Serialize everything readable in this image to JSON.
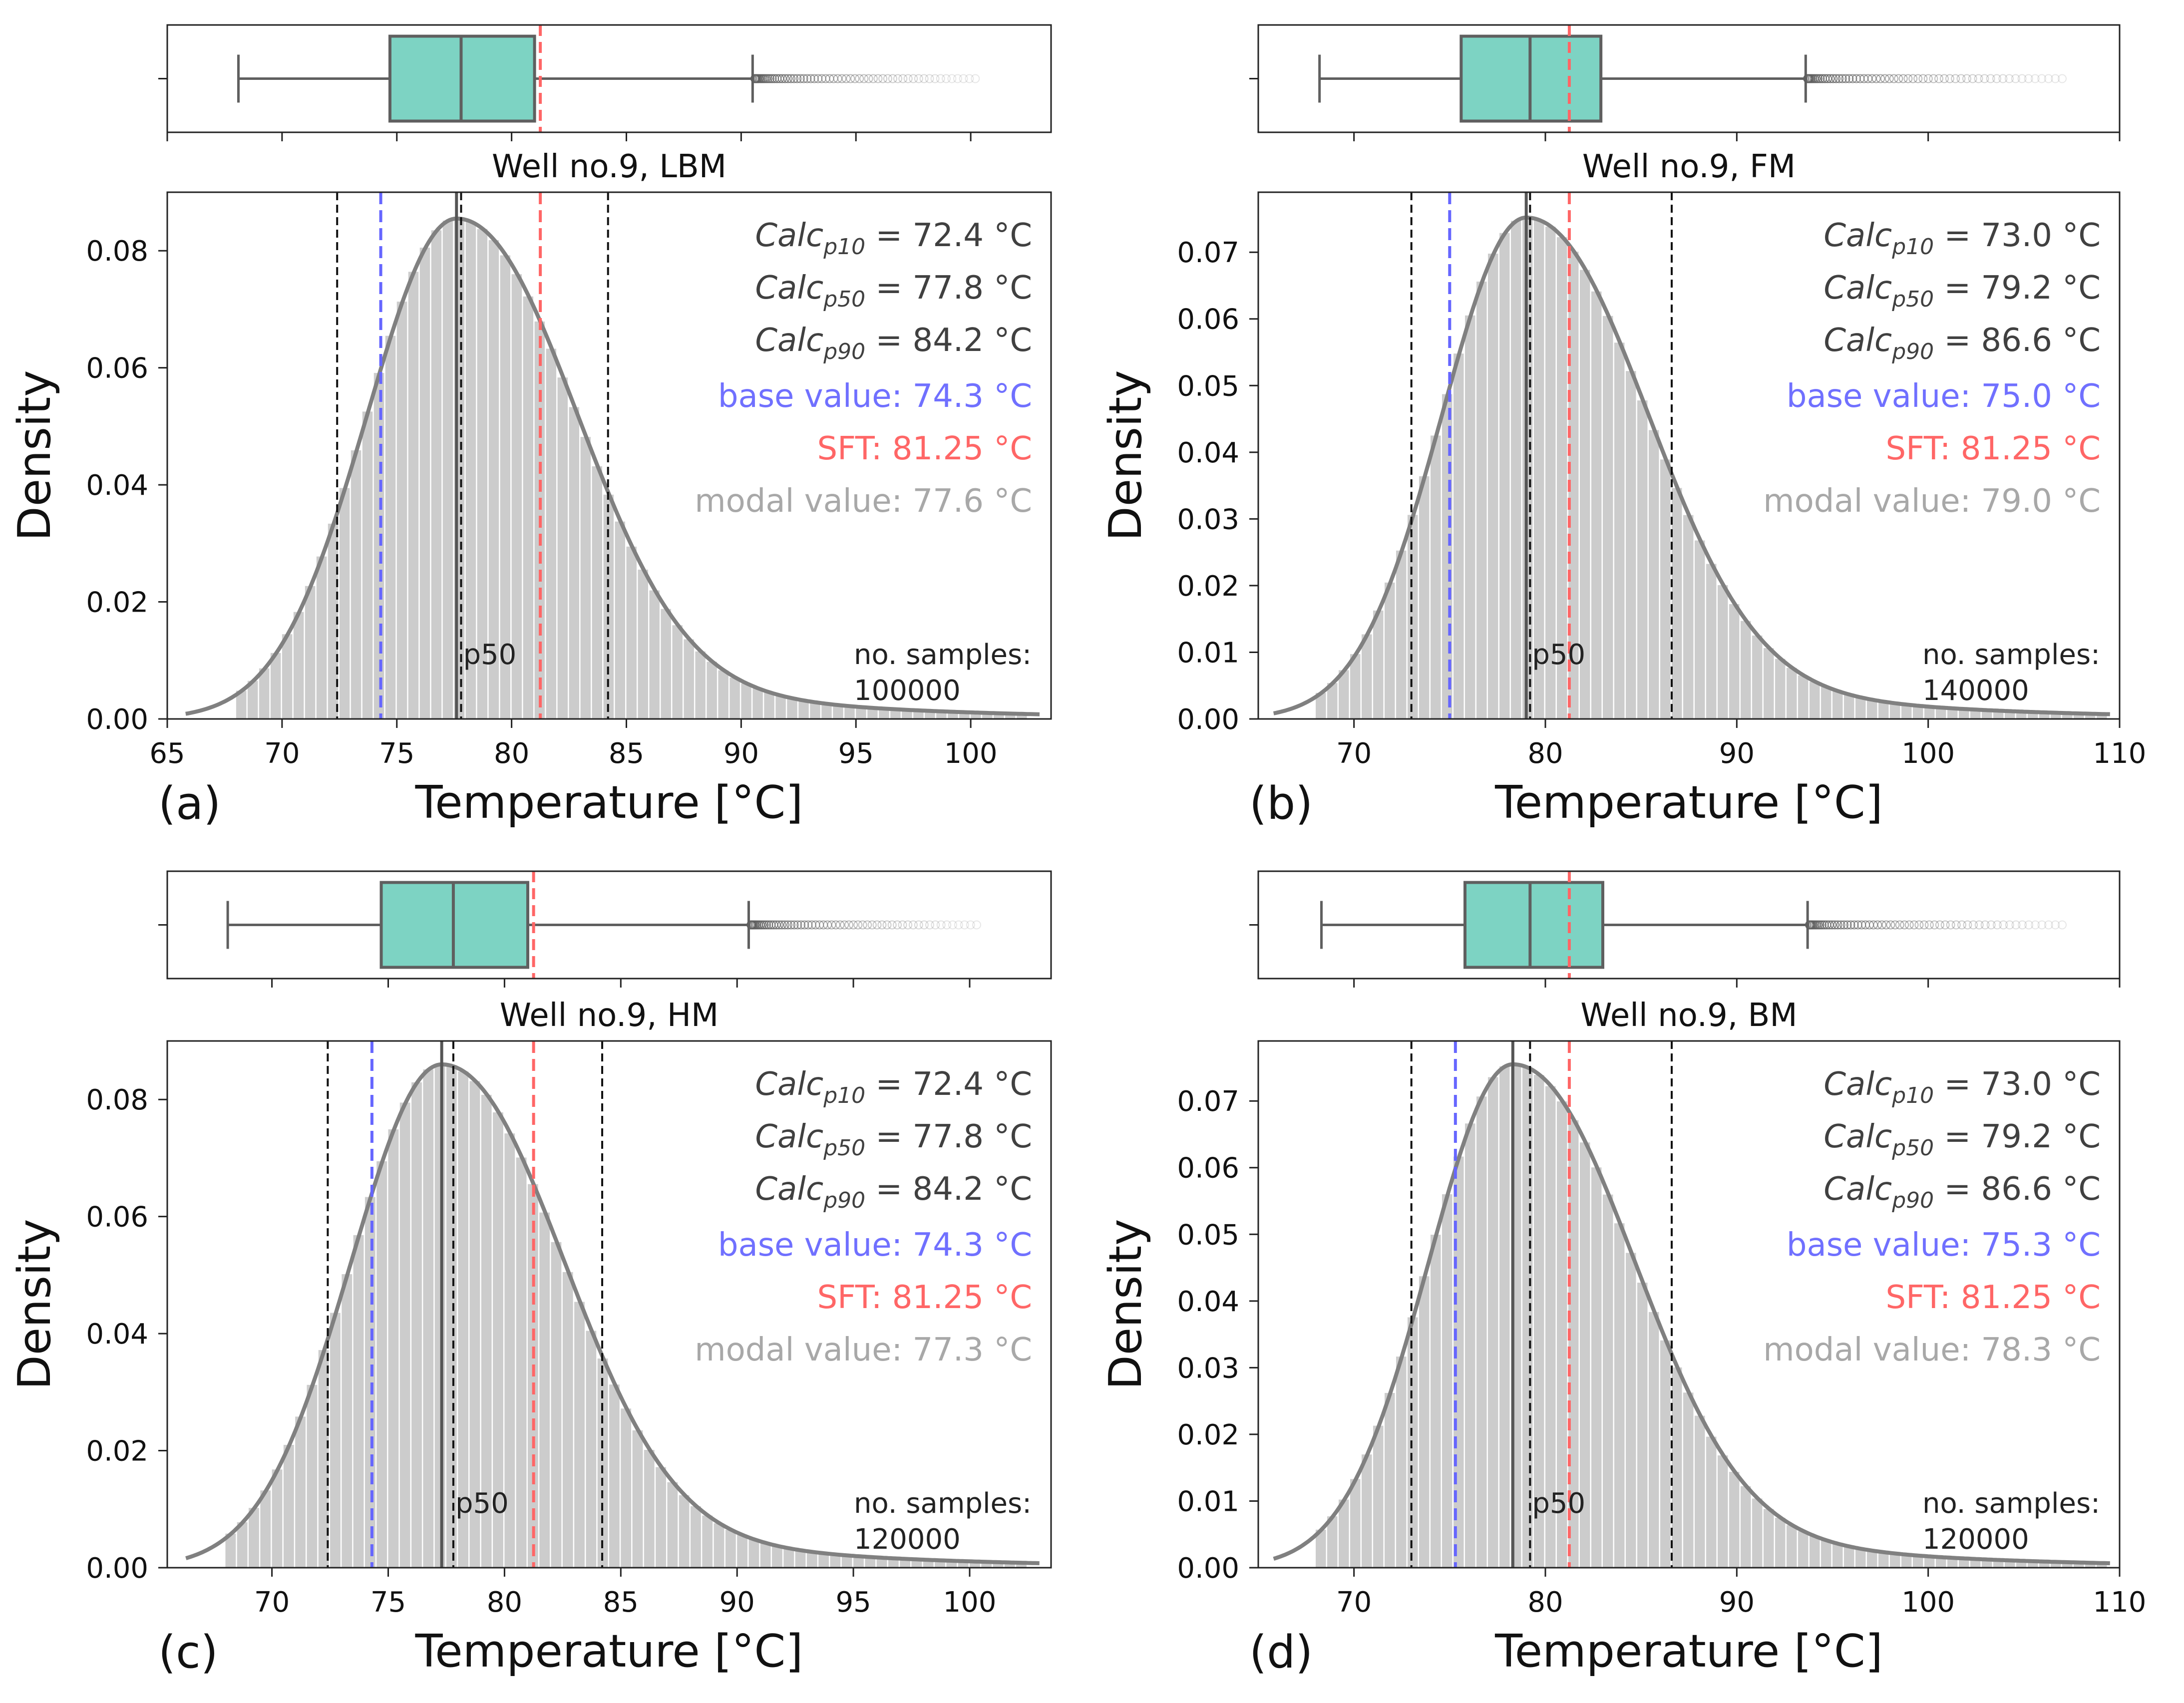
{
  "figure": {
    "colors": {
      "box_fill": "#7dd3c3",
      "box_edge": "#5f5f5f",
      "hist_bar": "#cccccc",
      "kde_line": "#808080",
      "base_line": "#6666ff",
      "sft_line": "#ff6666",
      "p_line": "#111111",
      "p50_line": "#555555",
      "stat_text": "#404040",
      "base_text": "#7070ff",
      "sft_text": "#ff6666",
      "modal_text": "#a8a8a8"
    }
  },
  "chart_data": [
    {
      "type": "bar",
      "panel_label": "(a)",
      "title": "Well no.9, LBM",
      "xlabel": "Temperature [°C]",
      "ylabel": "Density",
      "xlim": [
        65,
        103.5
      ],
      "ylim": [
        0,
        0.09
      ],
      "xticks": [
        65,
        70,
        75,
        80,
        85,
        90,
        95,
        100
      ],
      "xtick_labels": [
        "65",
        "70",
        "75",
        "80",
        "85",
        "90",
        "95",
        "100"
      ],
      "yticks": [
        0,
        0.02,
        0.04,
        0.06,
        0.08
      ],
      "ytick_labels": [
        "0.00",
        "0.02",
        "0.04",
        "0.06",
        "0.08"
      ],
      "bin_width": 0.5,
      "data_start": 68.0,
      "kde": {
        "mode": 77.6,
        "peak": 0.0855,
        "sigma_left": 3.9,
        "sigma_right": 4.8,
        "tail": 0.17
      },
      "box": {
        "whisker_low": 68.1,
        "q1": 74.7,
        "median": 77.8,
        "q3": 81.0,
        "whisker_high": 90.5,
        "outliers_max": 100.2
      },
      "p10": 72.4,
      "p50": 77.8,
      "p90": 84.2,
      "base": 74.3,
      "sft": 81.25,
      "modal": 77.6,
      "stats": {
        "calc_prefix": "Calc",
        "calc_p10_sub": "p10",
        "calc_p10_val": " = 72.4 °C",
        "calc_p50_sub": "p50",
        "calc_p50_val": " = 77.8 °C",
        "calc_p90_sub": "p90",
        "calc_p90_val": " = 84.2 °C",
        "base_value": "base value: 74.3 °C",
        "sft": "SFT: 81.25 °C",
        "modal_value": "modal value: 77.6 °C"
      },
      "p50_label": "p50",
      "samples_label": "no. samples:",
      "samples_value": "100000"
    },
    {
      "type": "bar",
      "panel_label": "(b)",
      "title": "Well no.9, FM",
      "xlabel": "Temperature [°C]",
      "ylabel": "Density",
      "xlim": [
        65,
        110
      ],
      "ylim": [
        0,
        0.079
      ],
      "xticks": [
        70,
        80,
        90,
        100,
        110
      ],
      "xtick_labels": [
        "70",
        "80",
        "90",
        "100",
        "110"
      ],
      "yticks": [
        0,
        0.01,
        0.02,
        0.03,
        0.04,
        0.05,
        0.06,
        0.07
      ],
      "ytick_labels": [
        "0.00",
        "0.01",
        "0.02",
        "0.03",
        "0.04",
        "0.05",
        "0.06",
        "0.07"
      ],
      "bin_width": 0.6,
      "data_start": 68.0,
      "kde": {
        "mode": 79.0,
        "peak": 0.0752,
        "sigma_left": 4.4,
        "sigma_right": 5.8,
        "tail": 0.17
      },
      "box": {
        "whisker_low": 68.2,
        "q1": 75.6,
        "median": 79.2,
        "q3": 82.9,
        "whisker_high": 93.6,
        "outliers_max": 107.0
      },
      "p10": 73.0,
      "p50": 79.2,
      "p90": 86.6,
      "base": 75.0,
      "sft": 81.25,
      "modal": 79.0,
      "stats": {
        "calc_prefix": "Calc",
        "calc_p10_sub": "p10",
        "calc_p10_val": " = 73.0 °C",
        "calc_p50_sub": "p50",
        "calc_p50_val": " = 79.2 °C",
        "calc_p90_sub": "p90",
        "calc_p90_val": " = 86.6 °C",
        "base_value": "base value: 75.0 °C",
        "sft": "SFT: 81.25 °C",
        "modal_value": "modal value: 79.0 °C"
      },
      "p50_label": "p50",
      "samples_label": "no. samples:",
      "samples_value": "140000"
    },
    {
      "type": "bar",
      "panel_label": "(c)",
      "title": "Well no.9, HM",
      "xlabel": "Temperature [°C]",
      "ylabel": "Density",
      "xlim": [
        65.5,
        103.5
      ],
      "ylim": [
        0,
        0.09
      ],
      "xticks": [
        70,
        75,
        80,
        85,
        90,
        95,
        100
      ],
      "xtick_labels": [
        "70",
        "75",
        "80",
        "85",
        "90",
        "95",
        "100"
      ],
      "yticks": [
        0,
        0.02,
        0.04,
        0.06,
        0.08
      ],
      "ytick_labels": [
        "0.00",
        "0.02",
        "0.04",
        "0.06",
        "0.08"
      ],
      "bin_width": 0.5,
      "data_start": 68.0,
      "kde": {
        "mode": 77.3,
        "peak": 0.086,
        "sigma_left": 3.9,
        "sigma_right": 4.8,
        "tail": 0.17
      },
      "box": {
        "whisker_low": 68.1,
        "q1": 74.7,
        "median": 77.8,
        "q3": 81.0,
        "whisker_high": 90.5,
        "outliers_max": 100.3
      },
      "p10": 72.4,
      "p50": 77.8,
      "p90": 84.2,
      "base": 74.3,
      "sft": 81.25,
      "modal": 77.3,
      "stats": {
        "calc_prefix": "Calc",
        "calc_p10_sub": "p10",
        "calc_p10_val": " = 72.4 °C",
        "calc_p50_sub": "p50",
        "calc_p50_val": " = 77.8 °C",
        "calc_p90_sub": "p90",
        "calc_p90_val": " = 84.2 °C",
        "base_value": "base value: 74.3 °C",
        "sft": "SFT: 81.25 °C",
        "modal_value": "modal value: 77.3 °C"
      },
      "p50_label": "p50",
      "samples_label": "no. samples:",
      "samples_value": "120000"
    },
    {
      "type": "bar",
      "panel_label": "(d)",
      "title": "Well no.9, BM",
      "xlabel": "Temperature [°C]",
      "ylabel": "Density",
      "xlim": [
        65,
        110
      ],
      "ylim": [
        0,
        0.079
      ],
      "xticks": [
        70,
        80,
        90,
        100,
        110
      ],
      "xtick_labels": [
        "70",
        "80",
        "90",
        "100",
        "110"
      ],
      "yticks": [
        0,
        0.01,
        0.02,
        0.03,
        0.04,
        0.05,
        0.06,
        0.07
      ],
      "ytick_labels": [
        "0.00",
        "0.01",
        "0.02",
        "0.03",
        "0.04",
        "0.05",
        "0.06",
        "0.07"
      ],
      "bin_width": 0.6,
      "data_start": 68.0,
      "kde": {
        "mode": 78.3,
        "peak": 0.0755,
        "sigma_left": 4.4,
        "sigma_right": 5.8,
        "tail": 0.17
      },
      "box": {
        "whisker_low": 68.3,
        "q1": 75.8,
        "median": 79.2,
        "q3": 83.0,
        "whisker_high": 93.7,
        "outliers_max": 107.0
      },
      "p10": 73.0,
      "p50": 79.2,
      "p90": 86.6,
      "base": 75.3,
      "sft": 81.25,
      "modal": 78.3,
      "stats": {
        "calc_prefix": "Calc",
        "calc_p10_sub": "p10",
        "calc_p10_val": " = 73.0 °C",
        "calc_p50_sub": "p50",
        "calc_p50_val": " = 79.2 °C",
        "calc_p90_sub": "p90",
        "calc_p90_val": " = 86.6 °C",
        "base_value": "base value: 75.3 °C",
        "sft": "SFT: 81.25 °C",
        "modal_value": "modal value: 78.3 °C"
      },
      "p50_label": "p50",
      "samples_label": "no. samples:",
      "samples_value": "120000"
    }
  ]
}
